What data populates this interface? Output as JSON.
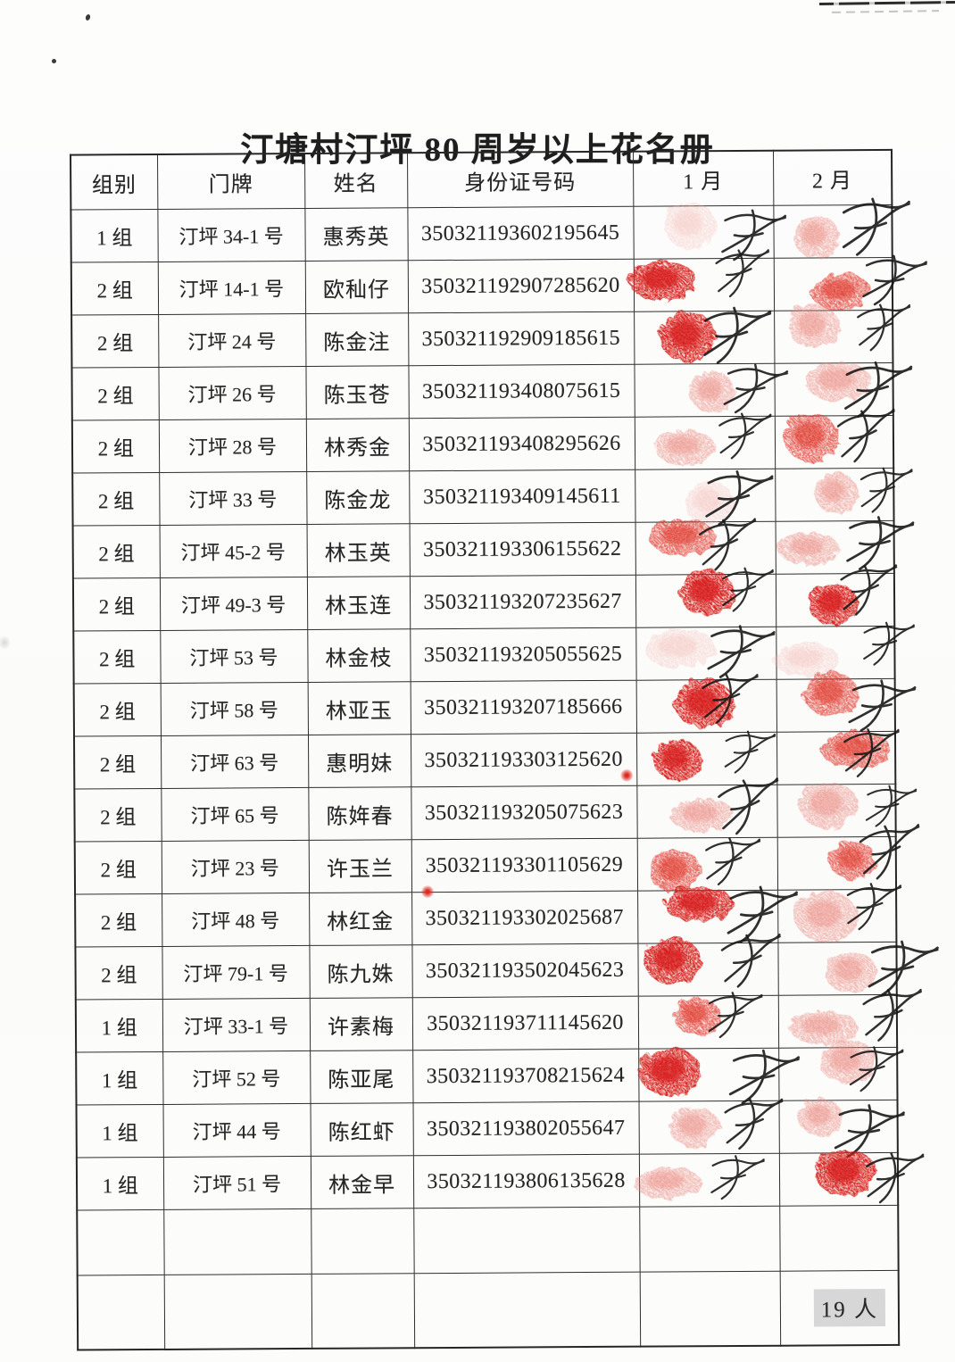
{
  "doc": {
    "title": "汀塘村汀坪 80 周岁以上花名册",
    "total_label": "19 人"
  },
  "table": {
    "columns": [
      "组别",
      "门牌",
      "姓名",
      "身份证号码",
      "1 月",
      "2 月"
    ],
    "rows": [
      {
        "group": "1 组",
        "door": "汀坪 34-1 号",
        "name": "惠秀英",
        "id": "350321193602195645",
        "jan_stamp": "faint",
        "feb_stamp": "light"
      },
      {
        "group": "2 组",
        "door": "汀坪 14-1 号",
        "name": "欧秈仔",
        "id": "350321192907285620",
        "jan_stamp": "deep",
        "feb_stamp": "medium"
      },
      {
        "group": "2 组",
        "door": "汀坪 24 号",
        "name": "陈金注",
        "id": "350321192909185615",
        "jan_stamp": "deep",
        "feb_stamp": "light"
      },
      {
        "group": "2 组",
        "door": "汀坪 26 号",
        "name": "陈玉苍",
        "id": "350321193408075615",
        "jan_stamp": "light",
        "feb_stamp": "light"
      },
      {
        "group": "2 组",
        "door": "汀坪 28 号",
        "name": "林秀金",
        "id": "350321193408295626",
        "jan_stamp": "light",
        "feb_stamp": "medium"
      },
      {
        "group": "2 组",
        "door": "汀坪 33 号",
        "name": "陈金龙",
        "id": "350321193409145611",
        "jan_stamp": "faint",
        "feb_stamp": "light"
      },
      {
        "group": "2 组",
        "door": "汀坪 45-2 号",
        "name": "林玉英",
        "id": "350321193306155622",
        "jan_stamp": "medium",
        "feb_stamp": "light"
      },
      {
        "group": "2 组",
        "door": "汀坪 49-3 号",
        "name": "林玉连",
        "id": "350321193207235627",
        "jan_stamp": "deep",
        "feb_stamp": "deep"
      },
      {
        "group": "2 组",
        "door": "汀坪 53 号",
        "name": "林金枝",
        "id": "350321193205055625",
        "jan_stamp": "faint",
        "feb_stamp": "faint"
      },
      {
        "group": "2 组",
        "door": "汀坪 58 号",
        "name": "林亚玉",
        "id": "350321193207185666",
        "jan_stamp": "deep",
        "feb_stamp": "medium"
      },
      {
        "group": "2 组",
        "door": "汀坪 63 号",
        "name": "惠明妹",
        "id": "350321193303125620",
        "jan_stamp": "deep",
        "feb_stamp": "medium",
        "id_speck": "end"
      },
      {
        "group": "2 组",
        "door": "汀坪 65 号",
        "name": "陈姩春",
        "id": "350321193205075623",
        "jan_stamp": "light",
        "feb_stamp": "light"
      },
      {
        "group": "2 组",
        "door": "汀坪 23 号",
        "name": "许玉兰",
        "id": "350321193301105629",
        "jan_stamp": "medium",
        "feb_stamp": "medium"
      },
      {
        "group": "2 组",
        "door": "汀坪 48 号",
        "name": "林红金",
        "id": "350321193302025687",
        "jan_stamp": "deep",
        "feb_stamp": "light",
        "id_speck": "start"
      },
      {
        "group": "2 组",
        "door": "汀坪 79-1 号",
        "name": "陈九姝",
        "id": "350321193502045623",
        "jan_stamp": "deep",
        "feb_stamp": "light"
      },
      {
        "group": "1 组",
        "door": "汀坪 33-1 号",
        "name": "许素梅",
        "id": "350321193711145620",
        "jan_stamp": "medium",
        "feb_stamp": "light"
      },
      {
        "group": "1 组",
        "door": "汀坪 52 号",
        "name": "陈亚尾",
        "id": "350321193708215624",
        "jan_stamp": "deep",
        "feb_stamp": "light"
      },
      {
        "group": "1 组",
        "door": "汀坪 44 号",
        "name": "陈红虾",
        "id": "350321193802055647",
        "jan_stamp": "light",
        "feb_stamp": "light"
      },
      {
        "group": "1 组",
        "door": "汀坪 51 号",
        "name": "林金早",
        "id": "350321193806135628",
        "jan_stamp": "light",
        "feb_stamp": "deep"
      }
    ]
  },
  "colors": {
    "stamp_deep": "#d71f1a",
    "stamp_medium": "#e03a2f",
    "stamp_light": "#ea857c",
    "stamp_faint": "#f3b8b2",
    "ink": "#191919",
    "grid_line": "#2e2e2e",
    "total_highlight": "#d7d7d7",
    "paper": "#fcfcfb"
  }
}
